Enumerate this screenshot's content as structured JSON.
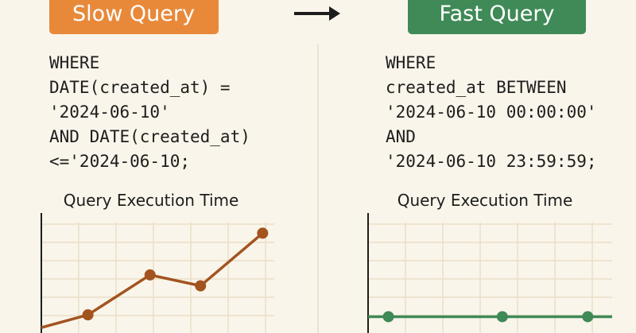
{
  "panels": [
    {
      "label": "Slow Query",
      "code": [
        "WHERE",
        "DATE(created_at) =",
        "'2024-06-10'",
        "AND DATE(created_at)",
        "<='2024-06-10;"
      ]
    },
    {
      "label": "Fast Query",
      "code": [
        "WHERE",
        "created_at BETWEEN",
        "'2024-06-10 00:00:00'",
        "AND",
        "'2024-06-10 23:59:59;"
      ]
    }
  ],
  "chart_data": [
    {
      "type": "line",
      "title": "Query Execution Time",
      "x": [
        0,
        1.2,
        2.8,
        4.1,
        5.7
      ],
      "xlim": [
        0,
        6
      ],
      "series": [
        {
          "color": "#a3531f",
          "values": [
            0.3,
            1.0,
            3.2,
            2.6,
            5.5
          ]
        }
      ],
      "ylim": [
        0,
        6
      ]
    },
    {
      "type": "line",
      "title": "Query Execution Time",
      "x": [
        0,
        0.5,
        3.3,
        5.4,
        6
      ],
      "xlim": [
        0,
        6
      ],
      "series": [
        {
          "color": "#3f8a57",
          "values": [
            0.9,
            0.9,
            0.9,
            0.9,
            0.9
          ]
        }
      ],
      "ylim": [
        0,
        6
      ]
    }
  ]
}
